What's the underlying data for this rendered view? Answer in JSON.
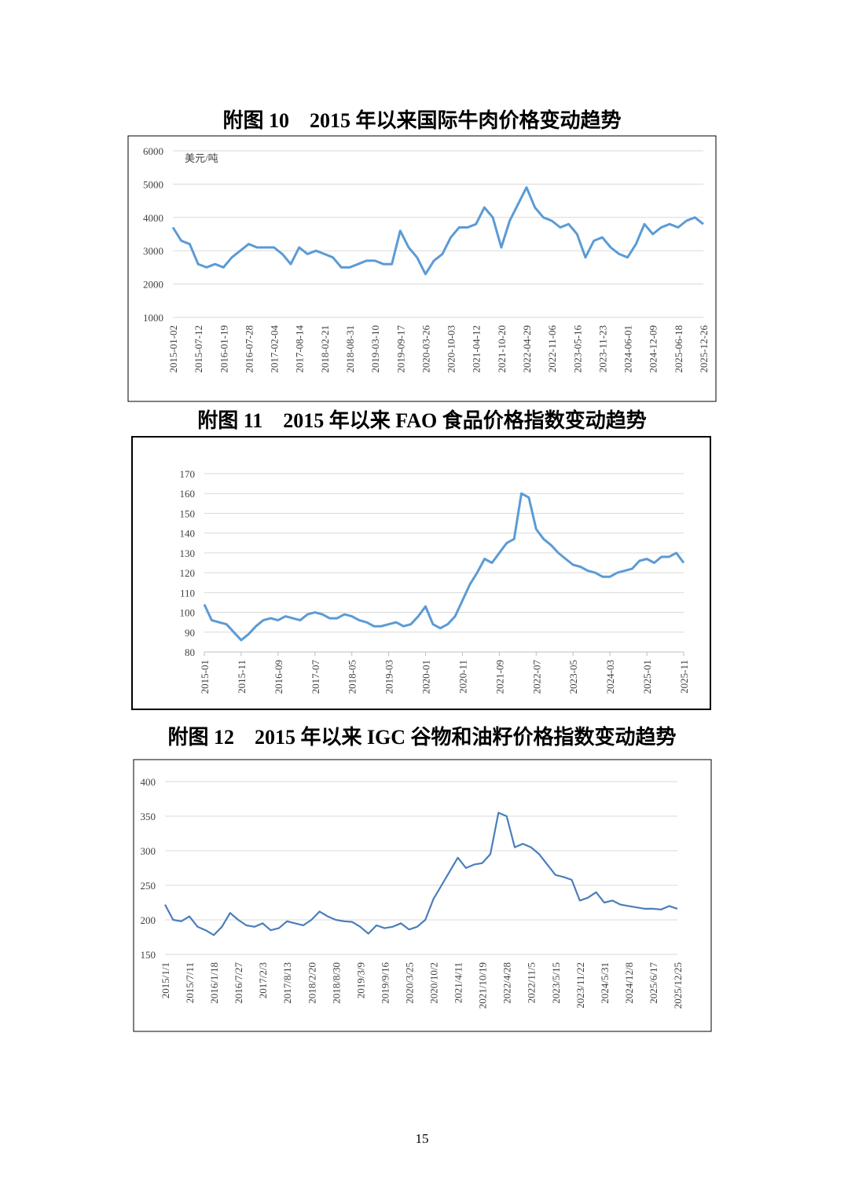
{
  "chart_data": [
    {
      "type": "line",
      "title": "附图 10　2015 年以来国际牛肉价格变动趋势",
      "annotation": "美元/吨",
      "categories": [
        "2015-01-02",
        null,
        null,
        "2015-07-12",
        null,
        null,
        "2016-01-19",
        null,
        null,
        "2016-07-28",
        null,
        null,
        "2017-02-04",
        null,
        null,
        "2017-08-14",
        null,
        null,
        "2018-02-21",
        null,
        null,
        "2018-08-31",
        null,
        null,
        "2019-03-10",
        null,
        null,
        "2019-09-17",
        null,
        null,
        "2020-03-26",
        null,
        null,
        "2020-10-03",
        null,
        null,
        "2021-04-12",
        null,
        null,
        "2021-10-20",
        null,
        null,
        "2022-04-29",
        null,
        null,
        "2022-11-06",
        null,
        null,
        "2023-05-16",
        null,
        null,
        "2023-11-23",
        null,
        null,
        "2024-06-01",
        null,
        null,
        "2024-12-09",
        null,
        null,
        "2025-06-18",
        null,
        null,
        "2025-12-26"
      ],
      "values": [
        3700,
        3300,
        3200,
        2600,
        2500,
        2600,
        2500,
        2800,
        3000,
        3200,
        3100,
        3100,
        3100,
        2900,
        2600,
        3100,
        2900,
        3000,
        2900,
        2800,
        2500,
        2500,
        2600,
        2700,
        2700,
        2600,
        2600,
        3600,
        3100,
        2800,
        2300,
        2700,
        2900,
        3400,
        3700,
        3700,
        3800,
        4300,
        4000,
        3100,
        3900,
        4400,
        4900,
        4300,
        4000,
        3900,
        3700,
        3800,
        3500,
        2800,
        3300,
        3400,
        3100,
        2900,
        2800,
        3200,
        3800,
        3500,
        3700,
        3800,
        3700,
        3900,
        4000,
        3800
      ],
      "color": "#5b9bd5",
      "ylim": [
        1000,
        6000
      ],
      "yticks": [
        1000,
        2000,
        3000,
        4000,
        5000,
        6000
      ],
      "grid": true
    },
    {
      "type": "line",
      "title": "附图 11　2015 年以来 FAO 食品价格指数变动趋势",
      "categories": [
        "2015-01",
        null,
        null,
        null,
        null,
        "2015-11",
        null,
        null,
        null,
        null,
        "2016-09",
        null,
        null,
        null,
        null,
        "2017-07",
        null,
        null,
        null,
        null,
        "2018-05",
        null,
        null,
        null,
        null,
        "2019-03",
        null,
        null,
        null,
        null,
        "2020-01",
        null,
        null,
        null,
        null,
        "2020-11",
        null,
        null,
        null,
        null,
        "2021-09",
        null,
        null,
        null,
        null,
        "2022-07",
        null,
        null,
        null,
        null,
        "2023-05",
        null,
        null,
        null,
        null,
        "2024-03",
        null,
        null,
        null,
        null,
        "2025-01",
        null,
        null,
        null,
        null,
        "2025-11"
      ],
      "values": [
        104,
        96,
        95,
        94,
        90,
        86,
        89,
        93,
        96,
        97,
        96,
        98,
        97,
        96,
        99,
        100,
        99,
        97,
        97,
        99,
        98,
        96,
        95,
        93,
        93,
        94,
        95,
        93,
        94,
        98,
        103,
        94,
        92,
        94,
        98,
        106,
        114,
        120,
        127,
        125,
        130,
        135,
        137,
        160,
        158,
        142,
        137,
        134,
        130,
        127,
        124,
        123,
        121,
        120,
        118,
        118,
        120,
        121,
        122,
        126,
        127,
        125,
        128,
        128,
        130,
        125
      ],
      "color": "#5b9bd5",
      "ylim": [
        80,
        170
      ],
      "yticks": [
        80,
        90,
        100,
        110,
        120,
        130,
        140,
        150,
        160,
        170
      ],
      "grid": true
    },
    {
      "type": "line",
      "title": "附图 12　2015 年以来 IGC 谷物和油籽价格指数变动趋势",
      "categories": [
        "2015/1/1",
        null,
        null,
        "2015/7/11",
        null,
        null,
        "2016/1/18",
        null,
        null,
        "2016/7/27",
        null,
        null,
        "2017/2/3",
        null,
        null,
        "2017/8/13",
        null,
        null,
        "2018/2/20",
        null,
        null,
        "2018/8/30",
        null,
        null,
        "2019/3/9",
        null,
        null,
        "2019/9/16",
        null,
        null,
        "2020/3/25",
        null,
        null,
        "2020/10/2",
        null,
        null,
        "2021/4/11",
        null,
        null,
        "2021/10/19",
        null,
        null,
        "2022/4/28",
        null,
        null,
        "2022/11/5",
        null,
        null,
        "2023/5/15",
        null,
        null,
        "2023/11/22",
        null,
        null,
        "2024/5/31",
        null,
        null,
        "2024/12/8",
        null,
        null,
        "2025/6/17",
        null,
        null,
        "2025/12/25"
      ],
      "values": [
        222,
        200,
        198,
        205,
        190,
        185,
        178,
        190,
        210,
        200,
        192,
        190,
        195,
        185,
        188,
        198,
        195,
        192,
        200,
        212,
        205,
        200,
        198,
        197,
        190,
        180,
        192,
        188,
        190,
        195,
        186,
        190,
        200,
        230,
        250,
        270,
        290,
        275,
        280,
        282,
        295,
        355,
        350,
        305,
        310,
        305,
        295,
        280,
        265,
        262,
        258,
        228,
        232,
        240,
        225,
        228,
        222,
        220,
        218,
        216,
        216,
        215,
        220,
        216
      ],
      "color": "#4a7ebb",
      "ylim": [
        150,
        400
      ],
      "yticks": [
        150,
        200,
        250,
        300,
        350,
        400
      ],
      "grid": true
    }
  ],
  "page_number": "15"
}
